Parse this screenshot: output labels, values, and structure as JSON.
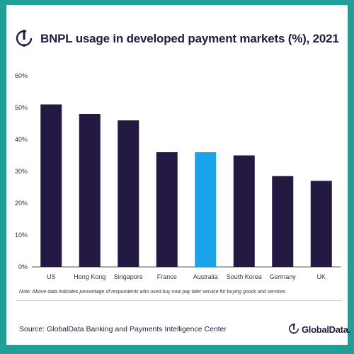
{
  "header": {
    "title": "BNPL usage in developed payment markets (%), 2021"
  },
  "chart_data": {
    "type": "bar",
    "title": "BNPL usage in developed payment markets (%), 2021",
    "categories": [
      "US",
      "Hong Kong",
      "Singapore",
      "France",
      "Australia",
      "South Korea",
      "Germany",
      "UK"
    ],
    "values": [
      51,
      48,
      46,
      36,
      36,
      35,
      28.5,
      27
    ],
    "highlight_category": "Australia",
    "yticks": [
      "0%",
      "10%",
      "20%",
      "30%",
      "40%",
      "50%",
      "60%"
    ],
    "ylim": [
      0,
      60
    ],
    "grid": false,
    "legend": "none",
    "colors": {
      "bar": "#231942",
      "highlight": "#1aa3e8",
      "axis": "#555555"
    }
  },
  "footer": {
    "note": "Note: Above data indicates percentage of respondents who used buy now pay later service for buying goods and services",
    "source": "Source: GlobalData Banking and Payments Intelligence Center",
    "brand": "GlobalData."
  },
  "icons": {
    "title_logo": "globaldata-logo-icon",
    "brand_logo": "globaldata-logo-icon"
  }
}
